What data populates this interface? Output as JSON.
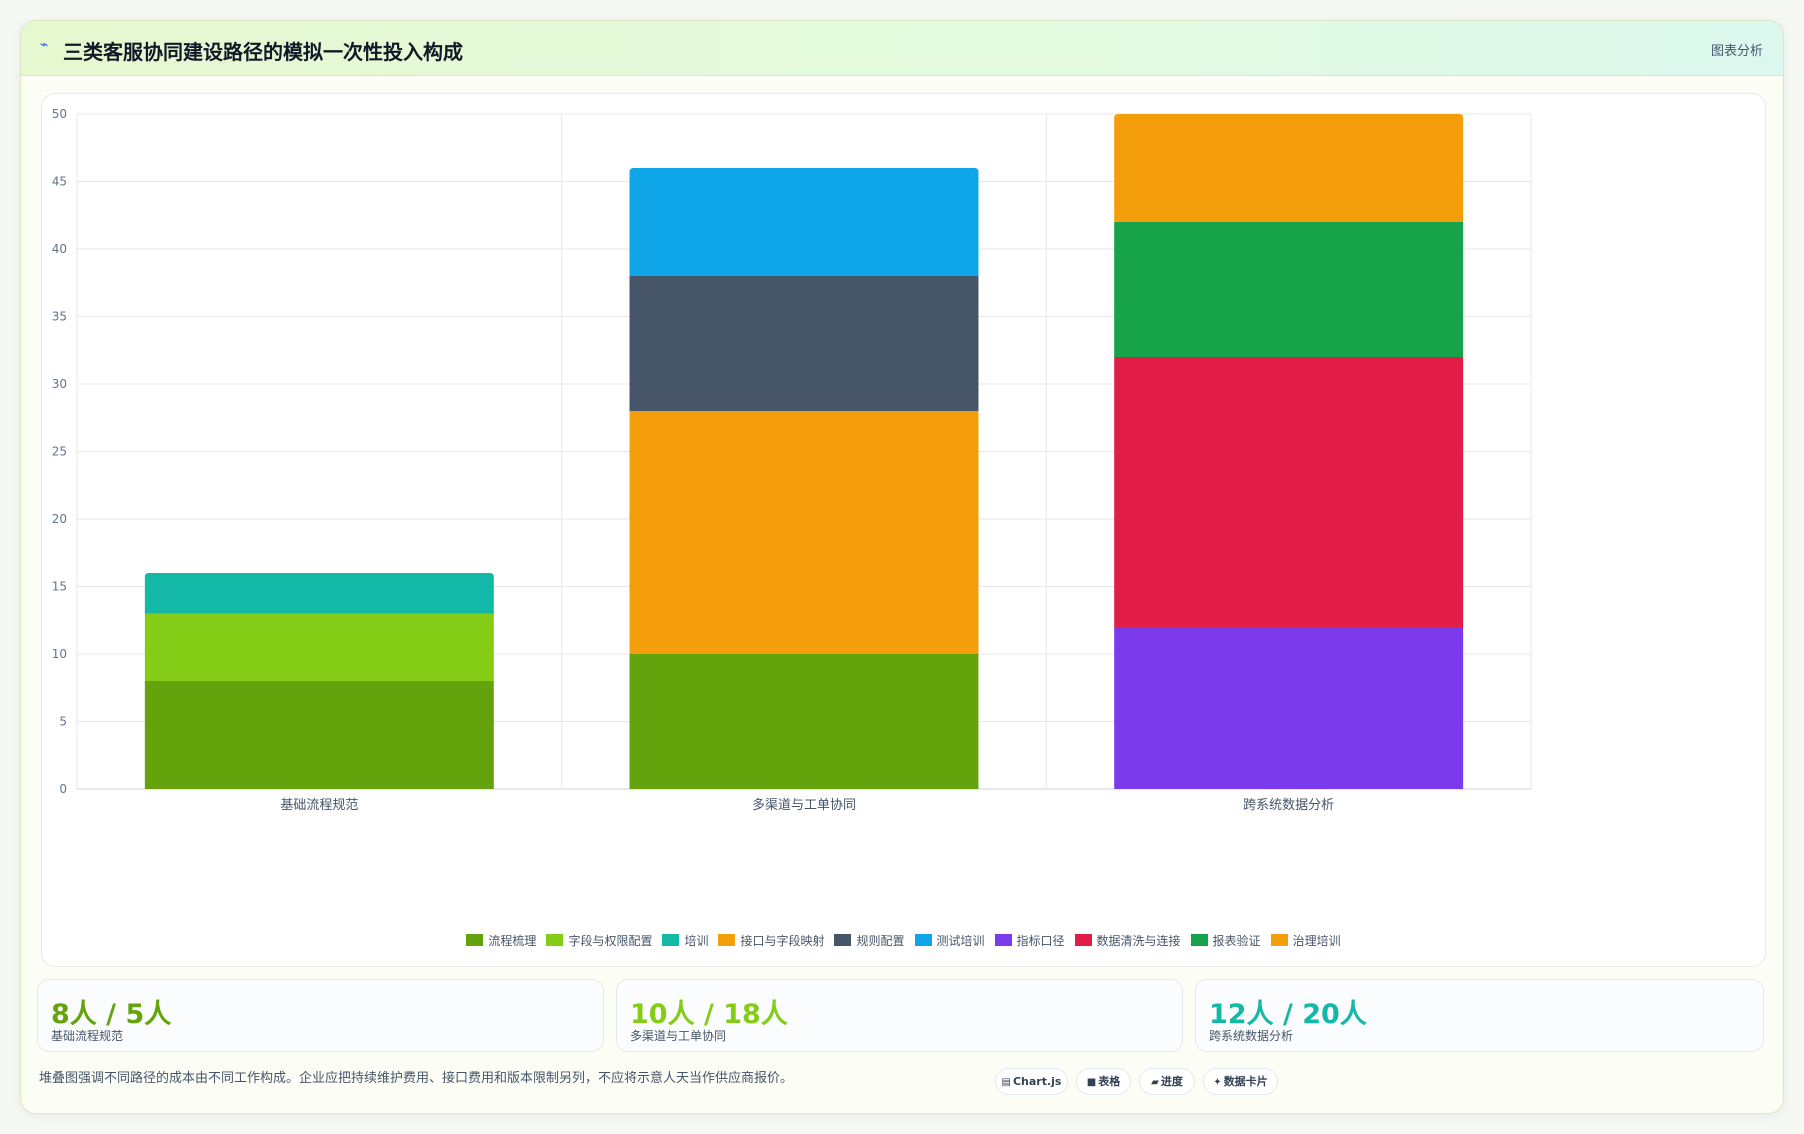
{
  "header": {
    "icon": "chart-icon",
    "title": "三类客服协同建设路径的模拟一次性投入构成",
    "link_label": "图表分析"
  },
  "chart_data": {
    "type": "bar",
    "stacked": true,
    "categories": [
      "基础流程规范",
      "多渠道与工单协同",
      "跨系统数据分析"
    ],
    "series": [
      {
        "name": "流程梳理",
        "color": "#65a30d",
        "values": [
          8,
          10,
          0
        ]
      },
      {
        "name": "字段与权限配置",
        "color": "#84cc16",
        "values": [
          5,
          0,
          0
        ]
      },
      {
        "name": "培训",
        "color": "#14b8a6",
        "values": [
          3,
          0,
          0
        ]
      },
      {
        "name": "接口与字段映射",
        "color": "#f59e0b",
        "values": [
          0,
          18,
          0
        ]
      },
      {
        "name": "规则配置",
        "color": "#475569",
        "values": [
          0,
          10,
          0
        ]
      },
      {
        "name": "测试培训",
        "color": "#0ea5e9",
        "values": [
          0,
          8,
          0
        ]
      },
      {
        "name": "指标口径",
        "color": "#7c3aed",
        "values": [
          0,
          0,
          12
        ]
      },
      {
        "name": "数据清洗与连接",
        "color": "#e11d48",
        "values": [
          0,
          0,
          20
        ]
      },
      {
        "name": "报表验证",
        "color": "#16a34a",
        "values": [
          0,
          0,
          10
        ]
      },
      {
        "name": "治理培训",
        "color": "#f59e0b",
        "values": [
          0,
          0,
          8
        ]
      }
    ],
    "ylim": [
      0,
      50
    ],
    "yticks": [
      0,
      5,
      10,
      15,
      20,
      25,
      30,
      35,
      40,
      45,
      50
    ],
    "grid": true,
    "legend_position": "bottom"
  },
  "stats": [
    {
      "value": "8人 / 5人",
      "label": "基础流程规范",
      "color": "#65a30d"
    },
    {
      "value": "10人 / 18人",
      "label": "多渠道与工单协同",
      "color": "#84cc16"
    },
    {
      "value": "12人 / 20人",
      "label": "跨系统数据分析",
      "color": "#14b8a6"
    }
  ],
  "footnote": "堆叠图强调不同路径的成本由不同工作构成。企业应把持续维护费用、接口费用和版本限制另列，不应将示意人天当作供应商报价。",
  "pills": [
    {
      "icon": "▤",
      "label": "Chart.js"
    },
    {
      "icon": "■",
      "label": "表格"
    },
    {
      "icon": "▰",
      "label": "进度"
    },
    {
      "icon": "✦",
      "label": "数据卡片"
    }
  ]
}
